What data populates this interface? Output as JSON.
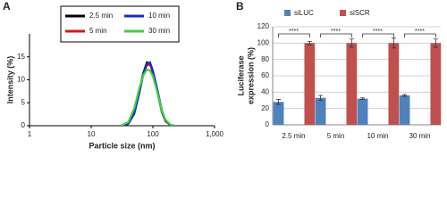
{
  "chart_data": [
    {
      "type": "line",
      "label": "A",
      "xlabel": "Particle size (nm)",
      "ylabel": "Intensity (%)",
      "xlog": true,
      "xlim": [
        1,
        1000
      ],
      "xticks": [
        1,
        10,
        100,
        {
          "value": 1000,
          "label": "1,000"
        }
      ],
      "ylim": [
        0,
        20
      ],
      "yticks": [
        0,
        5,
        10,
        15
      ],
      "x": [
        30,
        40,
        50,
        60,
        70,
        80,
        90,
        100,
        120,
        140,
        160,
        190,
        220
      ],
      "series": [
        {
          "name": "2.5 min",
          "color": "#000000",
          "values": [
            0,
            0.5,
            3,
            7.5,
            11.5,
            13.8,
            13.5,
            11.5,
            7,
            3,
            1,
            0.2,
            0
          ]
        },
        {
          "name": "5 min",
          "color": "#d7191c",
          "values": [
            0,
            0.4,
            2.8,
            7,
            11.2,
            13.2,
            13.3,
            11.8,
            7.3,
            3.2,
            1.1,
            0.2,
            0
          ]
        },
        {
          "name": "10 min",
          "color": "#1a2fbf",
          "values": [
            0,
            0.4,
            2.6,
            7,
            11.3,
            13.5,
            13.8,
            12,
            7.5,
            3.3,
            1.2,
            0.2,
            0
          ]
        },
        {
          "name": "30 min",
          "color": "#3fd13f",
          "values": [
            0,
            0.8,
            3.8,
            8,
            11,
            12.2,
            12,
            10.8,
            7,
            3.3,
            1.3,
            0.3,
            0
          ]
        }
      ]
    },
    {
      "type": "bar",
      "label": "B",
      "ylabel": [
        "Luciferase",
        "expression (%)"
      ],
      "categories": [
        "2.5 min",
        "5 min",
        "10 min",
        "30 min"
      ],
      "ylim": [
        0,
        120
      ],
      "yticks": [
        0,
        20,
        40,
        60,
        80,
        100,
        120
      ],
      "grid": true,
      "significance": [
        "****",
        "****",
        "****",
        "****"
      ],
      "series": [
        {
          "name": "siLUC",
          "color": "#4f81bd",
          "values": [
            28,
            33,
            32,
            36
          ],
          "errors": [
            3,
            3,
            1,
            1
          ]
        },
        {
          "name": "siSCR",
          "color": "#c0504d",
          "values": [
            100,
            100,
            100,
            100
          ],
          "errors": [
            2,
            5,
            6,
            5
          ]
        }
      ]
    }
  ]
}
